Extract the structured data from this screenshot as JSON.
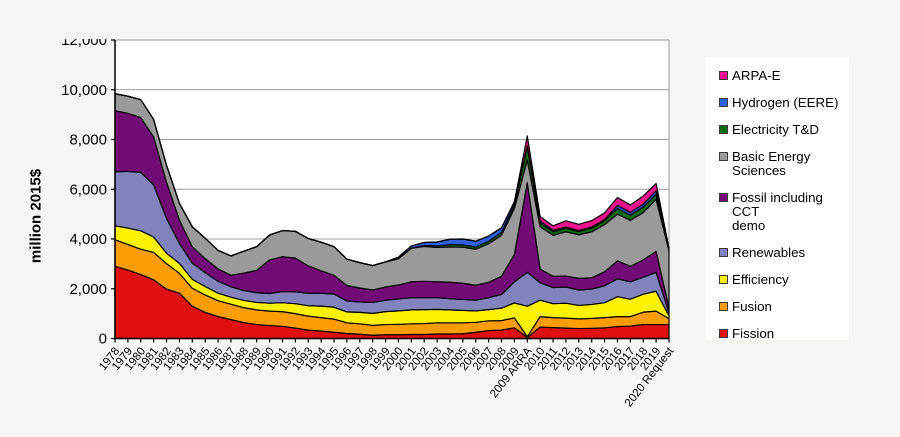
{
  "chart_data": {
    "type": "area",
    "stacked": true,
    "title": "",
    "xlabel": "",
    "ylabel": "million 2015$",
    "ylim": [
      0,
      12000
    ],
    "y_tick_step": 2000,
    "y_tick_labels": [
      "0",
      "2,000",
      "4,000",
      "6,000",
      "8,000",
      "10,000",
      "12,000"
    ],
    "grid": true,
    "legend_position": "right",
    "categories": [
      "1978",
      "1979",
      "1980",
      "1981",
      "1982",
      "1983",
      "1984",
      "1985",
      "1986",
      "1987",
      "1988",
      "1989",
      "1990",
      "1991",
      "1992",
      "1993",
      "1994",
      "1995",
      "1996",
      "1997",
      "1998",
      "1999",
      "2000",
      "2001",
      "2002",
      "2003",
      "2004",
      "2005",
      "2006",
      "2007",
      "2008",
      "2009",
      "2009 ARRA",
      "2010",
      "2011",
      "2012",
      "2013",
      "2014",
      "2015",
      "2016",
      "2017",
      "2018",
      "2019",
      "2020 Request"
    ],
    "series": [
      {
        "name": "Fission",
        "color": "#E01010",
        "values": [
          2900,
          2750,
          2570,
          2360,
          1980,
          1820,
          1300,
          1050,
          880,
          760,
          640,
          560,
          520,
          490,
          420,
          340,
          300,
          250,
          200,
          170,
          130,
          150,
          150,
          160,
          160,
          180,
          180,
          190,
          250,
          320,
          340,
          430,
          40,
          460,
          440,
          420,
          400,
          410,
          430,
          480,
          500,
          560,
          560,
          560
        ]
      },
      {
        "name": "Fusion",
        "color": "#FF9C00",
        "values": [
          1070,
          1030,
          1020,
          1100,
          1030,
          800,
          720,
          700,
          640,
          620,
          600,
          590,
          580,
          590,
          580,
          560,
          540,
          530,
          430,
          420,
          400,
          410,
          420,
          430,
          440,
          450,
          450,
          440,
          400,
          390,
          380,
          400,
          30,
          420,
          400,
          400,
          390,
          400,
          410,
          400,
          380,
          500,
          540,
          240
        ]
      },
      {
        "name": "Efficiency",
        "color": "#FFF200",
        "values": [
          560,
          660,
          740,
          620,
          420,
          400,
          360,
          340,
          300,
          280,
          290,
          300,
          320,
          360,
          400,
          420,
          460,
          480,
          440,
          460,
          480,
          520,
          540,
          560,
          560,
          540,
          520,
          500,
          460,
          450,
          500,
          600,
          1230,
          660,
          560,
          600,
          540,
          560,
          600,
          800,
          700,
          720,
          800,
          110
        ]
      },
      {
        "name": "Renewables",
        "color": "#8283BD",
        "values": [
          2180,
          2280,
          2350,
          2100,
          1400,
          800,
          650,
          560,
          480,
          420,
          400,
          390,
          390,
          450,
          480,
          500,
          520,
          530,
          440,
          420,
          440,
          460,
          480,
          490,
          480,
          470,
          450,
          440,
          430,
          480,
          550,
          850,
          1360,
          700,
          650,
          650,
          620,
          620,
          680,
          720,
          700,
          680,
          760,
          120
        ]
      },
      {
        "name": "Fossil including CCT demo",
        "color": "#720B76",
        "values": [
          2450,
          2330,
          2200,
          1920,
          1450,
          940,
          660,
          560,
          500,
          460,
          700,
          900,
          1350,
          1400,
          1350,
          1100,
          900,
          750,
          620,
          560,
          500,
          530,
          560,
          640,
          660,
          640,
          660,
          650,
          600,
          620,
          730,
          1100,
          3600,
          550,
          450,
          440,
          470,
          450,
          560,
          720,
          620,
          700,
          840,
          200
        ]
      },
      {
        "name": "Basic Energy Sciences",
        "color": "#9A9A9A",
        "values": [
          680,
          690,
          720,
          700,
          680,
          670,
          800,
          820,
          740,
          780,
          880,
          950,
          1000,
          1050,
          1080,
          1100,
          1150,
          1150,
          1060,
          1020,
          980,
          1010,
          1060,
          1350,
          1400,
          1380,
          1420,
          1450,
          1450,
          1550,
          1650,
          1850,
          920,
          1700,
          1650,
          1780,
          1750,
          1850,
          1900,
          1880,
          1850,
          1900,
          2100,
          2300
        ]
      },
      {
        "name": "Electricity T&D",
        "color": "#0C6C14",
        "values": [
          0,
          0,
          0,
          0,
          0,
          0,
          0,
          0,
          0,
          0,
          0,
          0,
          0,
          0,
          0,
          0,
          0,
          0,
          0,
          0,
          0,
          0,
          0,
          0,
          40,
          60,
          90,
          90,
          90,
          100,
          110,
          150,
          530,
          150,
          140,
          140,
          130,
          150,
          160,
          230,
          210,
          220,
          200,
          60
        ]
      },
      {
        "name": "Hydrogen (EERE)",
        "color": "#2F5FE0",
        "values": [
          0,
          0,
          0,
          0,
          0,
          0,
          0,
          0,
          0,
          0,
          0,
          0,
          0,
          0,
          0,
          0,
          0,
          0,
          0,
          0,
          0,
          0,
          60,
          90,
          120,
          160,
          220,
          240,
          230,
          210,
          190,
          120,
          40,
          80,
          60,
          50,
          40,
          40,
          40,
          120,
          110,
          120,
          140,
          40
        ]
      },
      {
        "name": "ARPA-E",
        "color": "#F0128C",
        "values": [
          0,
          0,
          0,
          0,
          0,
          0,
          0,
          0,
          0,
          0,
          0,
          0,
          0,
          0,
          0,
          0,
          0,
          0,
          0,
          0,
          0,
          0,
          0,
          0,
          0,
          0,
          0,
          0,
          0,
          0,
          0,
          0,
          390,
          180,
          180,
          250,
          250,
          260,
          270,
          320,
          300,
          330,
          290,
          0
        ]
      }
    ]
  },
  "legend": {
    "items": [
      {
        "id": "arpa-e",
        "label": "ARPA-E",
        "color": "#F0128C"
      },
      {
        "id": "hydrogen-eere",
        "label": "Hydrogen (EERE)",
        "color": "#2F5FE0"
      },
      {
        "id": "electricity-td",
        "label": "Electricity T&D",
        "color": "#0C6C14"
      },
      {
        "id": "basic-energy-sciences",
        "label": "Basic Energy\nSciences",
        "color": "#9A9A9A"
      },
      {
        "id": "fossil-including-cct-demo",
        "label": "Fossil including CCT\ndemo",
        "color": "#720B76"
      },
      {
        "id": "renewables",
        "label": "Renewables",
        "color": "#8283BD"
      },
      {
        "id": "efficiency",
        "label": "Efficiency",
        "color": "#FFF200"
      },
      {
        "id": "fusion",
        "label": "Fusion",
        "color": "#FF9C00"
      },
      {
        "id": "fission",
        "label": "Fission",
        "color": "#E01010"
      }
    ]
  },
  "colors": {
    "page_background": "#f5f5f4",
    "plot_background": "#ffffff",
    "gridline": "#9c9c9c",
    "axis": "#000000",
    "area_outline": "#000000"
  }
}
